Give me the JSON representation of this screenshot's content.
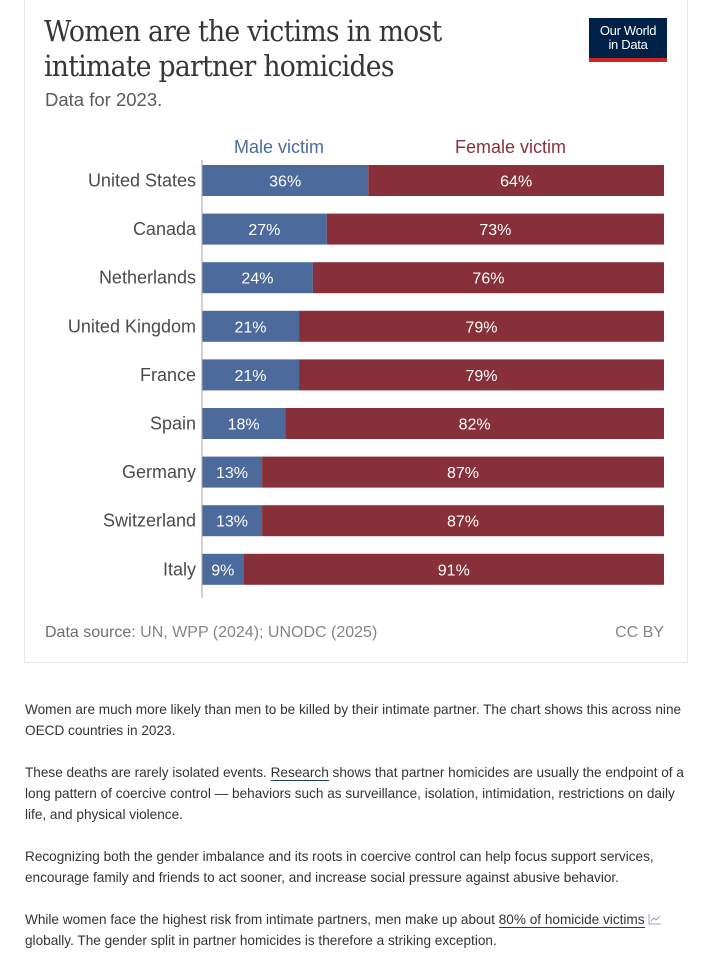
{
  "header": {
    "title": "Women are the victims in most intimate partner homicides",
    "subtitle": "Data for 2023.",
    "logo_line1": "Our World",
    "logo_line2": "in Data"
  },
  "colors": {
    "male": "#4c6a9c",
    "female": "#883039",
    "logo_bg": "#002147",
    "logo_accent": "#ce261e"
  },
  "chart_data": {
    "type": "bar",
    "orientation": "horizontal",
    "stacked": true,
    "title": "Women are the victims in most intimate partner homicides",
    "subtitle": "Data for 2023.",
    "xlabel": "",
    "ylabel": "",
    "xlim": [
      0,
      100
    ],
    "unit": "%",
    "legend_position": "top",
    "categories": [
      "United States",
      "Canada",
      "Netherlands",
      "United Kingdom",
      "France",
      "Spain",
      "Germany",
      "Switzerland",
      "Italy"
    ],
    "series": [
      {
        "name": "Male victim",
        "color": "#4c6a9c",
        "values": [
          36,
          27,
          24,
          21,
          21,
          18,
          13,
          13,
          9
        ]
      },
      {
        "name": "Female victim",
        "color": "#883039",
        "values": [
          64,
          73,
          76,
          79,
          79,
          82,
          87,
          87,
          91
        ]
      }
    ]
  },
  "footer": {
    "source_label": "Data source:",
    "source_text": " UN, WPP (2024); UNODC (2025)",
    "license": "CC BY"
  },
  "article": {
    "p1": "Women are much more likely than men to be killed by their intimate partner. The chart shows this across nine OECD countries in 2023.",
    "p2_before": "These deaths are rarely isolated events. ",
    "p2_link": "Research",
    "p2_after": " shows that partner homicides are usually the endpoint of a long pattern of coercive control — behaviors such as surveillance, isolation, intimidation, restrictions on daily life, and physical violence.",
    "p3": "Recognizing both the gender imbalance and its roots in coercive control can help focus support services, encourage family and friends to act sooner, and increase social pressure against abusive behavior.",
    "p4_before": "While women face the highest risk from intimate partners, men make up about ",
    "p4_link": "80% of homicide victims",
    "p4_after": " globally. The gender split in partner homicides is therefore a striking exception."
  }
}
